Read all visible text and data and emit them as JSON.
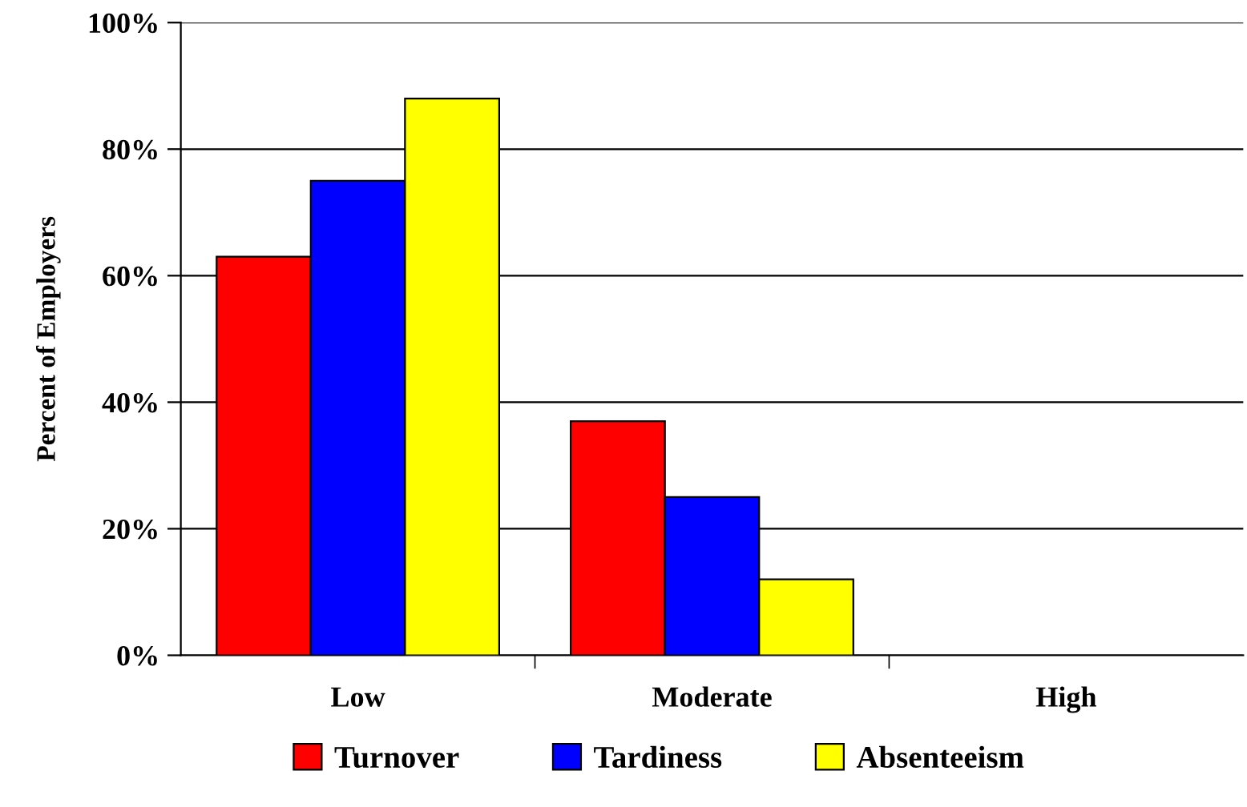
{
  "chart_data": {
    "type": "bar",
    "ylabel": "Percent of Employers",
    "categories": [
      "Low",
      "Moderate",
      "High"
    ],
    "series": [
      {
        "name": "Turnover",
        "color": "#ff0000",
        "values": [
          63,
          37,
          0
        ]
      },
      {
        "name": "Tardiness",
        "color": "#0000ff",
        "values": [
          75,
          25,
          0
        ]
      },
      {
        "name": "Absenteeism",
        "color": "#ffff00",
        "values": [
          88,
          12,
          0
        ]
      }
    ],
    "ylim": [
      0,
      100
    ],
    "yticks": [
      {
        "value": 0,
        "label": "0%"
      },
      {
        "value": 20,
        "label": "20%"
      },
      {
        "value": 40,
        "label": "40%"
      },
      {
        "value": 60,
        "label": "60%"
      },
      {
        "value": 80,
        "label": "80%"
      },
      {
        "value": 100,
        "label": "100%"
      }
    ],
    "grid": "y",
    "legend": "bottom"
  }
}
